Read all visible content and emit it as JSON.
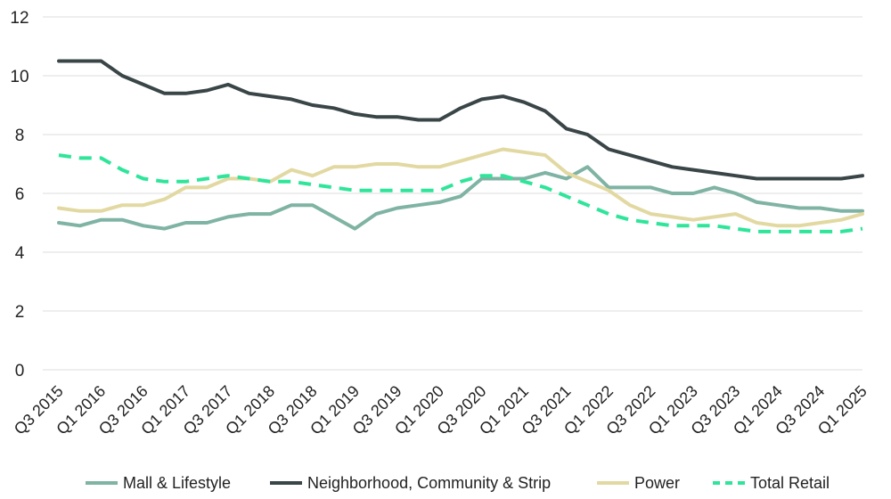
{
  "chart_data": {
    "type": "line",
    "title": "",
    "xlabel": "",
    "ylabel": "",
    "ylim": [
      0,
      12
    ],
    "yticks": [
      0,
      2,
      4,
      6,
      8,
      10,
      12
    ],
    "grid": true,
    "x": [
      "Q3 2015",
      "Q4 2015",
      "Q1 2016",
      "Q2 2016",
      "Q3 2016",
      "Q4 2016",
      "Q1 2017",
      "Q2 2017",
      "Q3 2017",
      "Q4 2017",
      "Q1 2018",
      "Q2 2018",
      "Q3 2018",
      "Q4 2018",
      "Q1 2019",
      "Q2 2019",
      "Q3 2019",
      "Q4 2019",
      "Q1 2020",
      "Q2 2020",
      "Q3 2020",
      "Q4 2020",
      "Q1 2021",
      "Q2 2021",
      "Q3 2021",
      "Q4 2021",
      "Q1 2022",
      "Q2 2022",
      "Q3 2022",
      "Q4 2022",
      "Q1 2023",
      "Q2 2023",
      "Q3 2023",
      "Q4 2023",
      "Q1 2024",
      "Q2 2024",
      "Q3 2024",
      "Q4 2024",
      "Q1 2025"
    ],
    "x_tick_labels": [
      "Q3 2015",
      "Q1 2016",
      "Q3 2016",
      "Q1 2017",
      "Q3 2017",
      "Q1 2018",
      "Q3 2018",
      "Q1 2019",
      "Q3 2019",
      "Q1 2020",
      "Q3 2020",
      "Q1 2021",
      "Q3 2021",
      "Q1 2022",
      "Q3 2022",
      "Q1 2023",
      "Q3 2023",
      "Q1 2024",
      "Q3 2024",
      "Q1 2025"
    ],
    "legend_position": "bottom",
    "series": [
      {
        "name": "Mall & Lifestyle",
        "color": "#7fb3a3",
        "dash": false,
        "values": [
          5.0,
          4.9,
          5.1,
          5.1,
          4.9,
          4.8,
          5.0,
          5.0,
          5.2,
          5.3,
          5.3,
          5.6,
          5.6,
          5.2,
          4.8,
          5.3,
          5.5,
          5.6,
          5.7,
          5.9,
          6.5,
          6.5,
          6.5,
          6.7,
          6.5,
          6.9,
          6.2,
          6.2,
          6.2,
          6.0,
          6.0,
          6.2,
          6.0,
          5.7,
          5.6,
          5.5,
          5.5,
          5.4,
          5.4
        ]
      },
      {
        "name": "Neighborhood, Community & Strip",
        "color": "#3a4547",
        "dash": false,
        "values": [
          10.5,
          10.5,
          10.5,
          10.0,
          9.7,
          9.4,
          9.4,
          9.5,
          9.7,
          9.4,
          9.3,
          9.2,
          9.0,
          8.9,
          8.7,
          8.6,
          8.6,
          8.5,
          8.5,
          8.9,
          9.2,
          9.3,
          9.1,
          8.8,
          8.2,
          8.0,
          7.5,
          7.3,
          7.1,
          6.9,
          6.8,
          6.7,
          6.6,
          6.5,
          6.5,
          6.5,
          6.5,
          6.5,
          6.6
        ]
      },
      {
        "name": "Power",
        "color": "#e2d9a2",
        "dash": false,
        "values": [
          5.5,
          5.4,
          5.4,
          5.6,
          5.6,
          5.8,
          6.2,
          6.2,
          6.5,
          6.5,
          6.4,
          6.8,
          6.6,
          6.9,
          6.9,
          7.0,
          7.0,
          6.9,
          6.9,
          7.1,
          7.3,
          7.5,
          7.4,
          7.3,
          6.7,
          6.4,
          6.1,
          5.6,
          5.3,
          5.2,
          5.1,
          5.2,
          5.3,
          5.0,
          4.9,
          4.9,
          5.0,
          5.1,
          5.3
        ]
      },
      {
        "name": "Total Retail",
        "color": "#2ee59a",
        "dash": true,
        "values": [
          7.3,
          7.2,
          7.2,
          6.8,
          6.5,
          6.4,
          6.4,
          6.5,
          6.6,
          6.5,
          6.4,
          6.4,
          6.3,
          6.2,
          6.1,
          6.1,
          6.1,
          6.1,
          6.1,
          6.4,
          6.6,
          6.6,
          6.4,
          6.2,
          5.9,
          5.6,
          5.3,
          5.1,
          5.0,
          4.9,
          4.9,
          4.9,
          4.8,
          4.7,
          4.7,
          4.7,
          4.7,
          4.7,
          4.8
        ]
      }
    ]
  }
}
